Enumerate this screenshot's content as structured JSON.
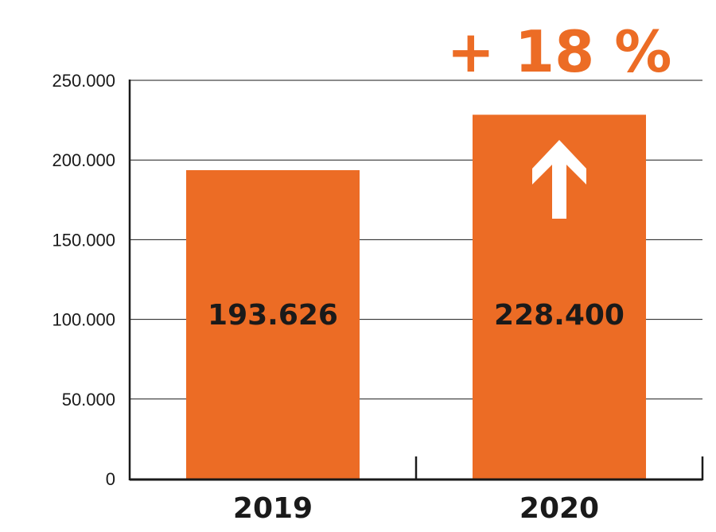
{
  "colors": {
    "bar": "#EC6C25",
    "accent": "#EC6C25",
    "axis": "#1a1a1a",
    "grid": "#1a1a1a",
    "arrow": "#ffffff"
  },
  "chart_data": {
    "type": "bar",
    "categories": [
      "2019",
      "2020"
    ],
    "values": [
      193626,
      228400
    ],
    "value_labels": [
      "193.626",
      "228.400"
    ],
    "title": "",
    "xlabel": "",
    "ylabel": "",
    "ylim": [
      0,
      250000
    ],
    "yticks": [
      0,
      50000,
      100000,
      150000,
      200000,
      250000
    ],
    "ytick_labels": [
      "0",
      "50.000",
      "100.000",
      "150.000",
      "200.000",
      "250.000"
    ],
    "grid": true,
    "annotations": [
      {
        "text": "+ 18 %",
        "target_category": "2020",
        "icon": "up-arrow-icon"
      }
    ]
  }
}
